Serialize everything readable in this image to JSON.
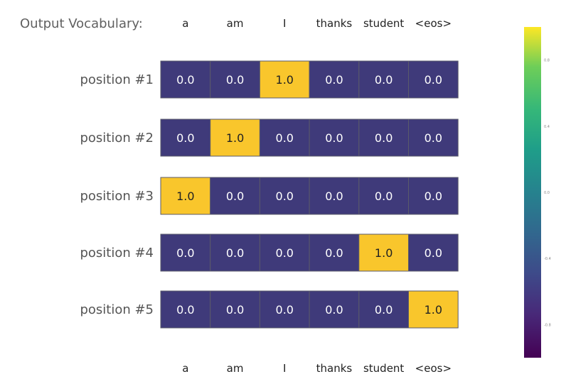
{
  "chart_data": {
    "type": "heatmap",
    "vocab_title": "Output Vocabulary:",
    "columns": [
      "a",
      "am",
      "I",
      "thanks",
      "student",
      "<eos>"
    ],
    "rows": [
      "position #1",
      "position #2",
      "position #3",
      "position #4",
      "position #5"
    ],
    "values": [
      [
        0.0,
        0.0,
        1.0,
        0.0,
        0.0,
        0.0
      ],
      [
        0.0,
        1.0,
        0.0,
        0.0,
        0.0,
        0.0
      ],
      [
        1.0,
        0.0,
        0.0,
        0.0,
        0.0,
        0.0
      ],
      [
        0.0,
        0.0,
        0.0,
        0.0,
        1.0,
        0.0
      ],
      [
        0.0,
        0.0,
        0.0,
        0.0,
        0.0,
        1.0
      ]
    ],
    "colorbar": {
      "range": [
        -1.0,
        1.0
      ],
      "ticks": [
        0.8,
        0.4,
        0.0,
        -0.4,
        -0.8
      ]
    },
    "colors": {
      "low": "#3f3a7a",
      "high": "#f9c62c",
      "text_low": "#ffffff",
      "text_high": "#222222",
      "cell_border": "#5a5a6a"
    }
  }
}
